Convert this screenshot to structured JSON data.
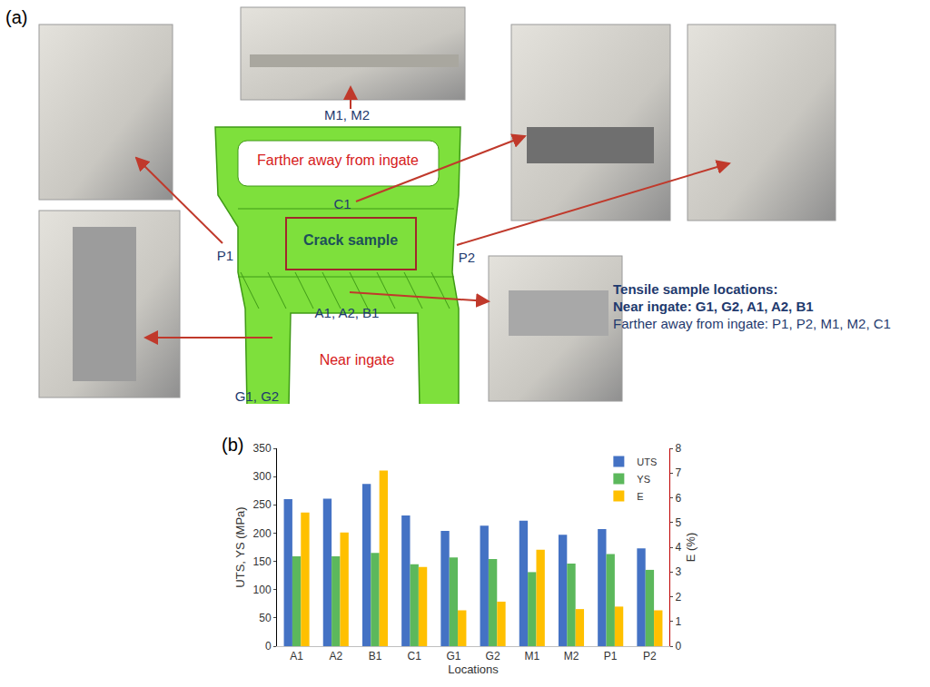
{
  "diagram": {
    "panel_label": "(a)",
    "labels": {
      "m": "M1, M2",
      "far": "Farther away from ingate",
      "c": "C1",
      "crack": "Crack sample",
      "p1": "P1",
      "p2": "P2",
      "a": "A1, A2, B1",
      "near": "Near ingate",
      "g": "G1, G2"
    },
    "notes": [
      "Tensile sample locations:",
      "Near ingate: G1, G2, A1, A2, B1",
      "Farther away from ingate: P1, P2, M1, M2, C1"
    ]
  },
  "chart_data": {
    "type": "bar",
    "annotations": [
      "(b)"
    ],
    "x_label": "Locations",
    "y_label": "UTS, YS (MPa)",
    "y2_label": "E (%)",
    "categories": [
      "A1",
      "A2",
      "B1",
      "C1",
      "G1",
      "G2",
      "M1",
      "M2",
      "P1",
      "P2"
    ],
    "series": [
      {
        "name": "UTS",
        "color": "#4472c4",
        "values": [
          260,
          261,
          287,
          231,
          204,
          213,
          222,
          197,
          207,
          173
        ]
      },
      {
        "name": "YS",
        "color": "#5cb85c",
        "values": [
          159,
          159,
          165,
          145,
          157,
          154,
          131,
          146,
          163,
          135
        ]
      },
      {
        "name": "E",
        "color": "#ffc000",
        "axis": "y2",
        "values": [
          5.4,
          4.6,
          7.1,
          3.2,
          1.45,
          1.8,
          3.9,
          1.5,
          1.6,
          1.45
        ]
      }
    ],
    "ylim": [
      0,
      350
    ],
    "yticks": [
      0,
      50,
      100,
      150,
      200,
      250,
      300,
      350
    ],
    "y2lim": [
      0,
      8
    ],
    "y2ticks": [
      0,
      1,
      2,
      3,
      4,
      5,
      6,
      7,
      8
    ],
    "grid": false,
    "legend": "upper right"
  }
}
